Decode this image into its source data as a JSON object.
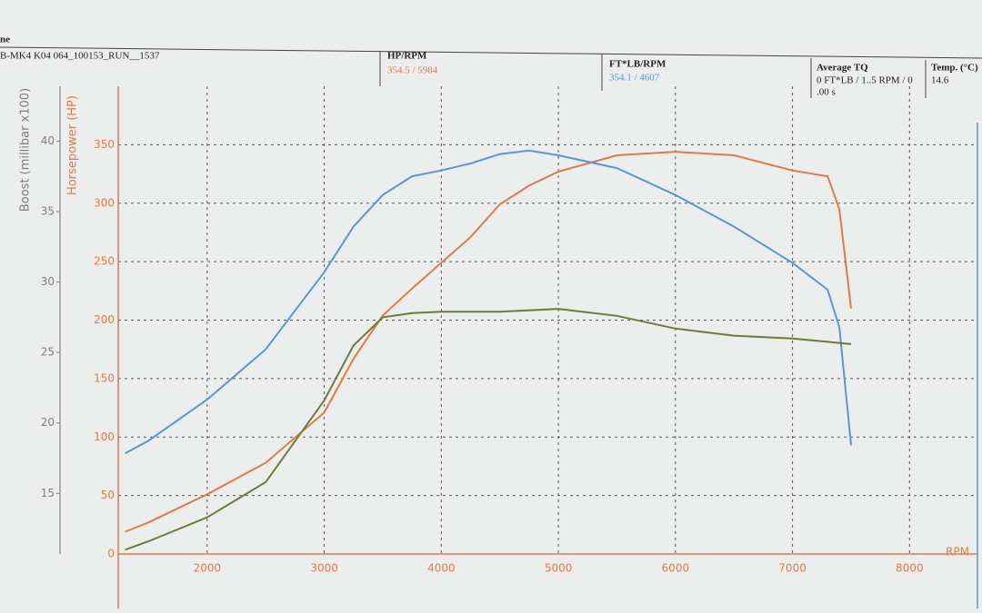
{
  "header": {
    "corner": "ne",
    "run": "B-MK4 K04 064_100153_RUN__1537",
    "hp_title": "HP/RPM",
    "hp_value": "354.5 / 5984",
    "tq_title": "FT*LB/RPM",
    "tq_value": "354.1 / 4607",
    "avg_title": "Average TQ",
    "avg_line1": "0 FT*LB / 1..5 RPM / 0",
    "avg_line2": ".00 s",
    "temp_title": "Temp. (°C)",
    "temp_value": "14.6"
  },
  "chart_data": {
    "type": "line",
    "x_label": "RPM",
    "y_label": "Horsepower (HP)",
    "y2_label": "Boost (millibar x100)",
    "xlim": [
      1240,
      8580
    ],
    "xticks": [
      2000,
      3000,
      4000,
      5000,
      6000,
      7000,
      8000
    ],
    "ylim": [
      0,
      400
    ],
    "yticks": [
      0,
      50,
      100,
      150,
      200,
      250,
      300,
      350
    ],
    "y2lim": [
      10.7,
      43.9
    ],
    "y2ticks": [
      15,
      20,
      25,
      30,
      35,
      40
    ],
    "grid": true,
    "series": [
      {
        "color": "#e07a4a",
        "x": [
          1300,
          1500,
          2000,
          2500,
          3000,
          3250,
          3500,
          3750,
          4000,
          4250,
          4500,
          4750,
          5000,
          5250,
          5500,
          6000,
          6500,
          7000,
          7300,
          7400,
          7500
        ],
        "values": [
          19,
          27,
          51,
          78,
          121,
          167,
          204,
          227,
          249,
          271,
          299,
          315,
          327,
          334,
          341,
          344,
          341,
          328,
          323,
          295,
          210
        ]
      },
      {
        "color": "#5b95d6",
        "x": [
          1300,
          1500,
          2000,
          2500,
          3000,
          3250,
          3500,
          3750,
          4000,
          4250,
          4500,
          4750,
          5000,
          5500,
          6000,
          6500,
          7000,
          7300,
          7400,
          7500
        ],
        "values": [
          86,
          97,
          132,
          175,
          241,
          280,
          307,
          323,
          328,
          334,
          342,
          345,
          341,
          330,
          307,
          280,
          249,
          226,
          194,
          93
        ]
      },
      {
        "color": "#6e7a3c",
        "axis": "y2",
        "x": [
          1300,
          1500,
          2000,
          2500,
          3000,
          3250,
          3500,
          3750,
          4000,
          4500,
          5000,
          5500,
          6000,
          6500,
          7000,
          7500
        ],
        "values": [
          11.0,
          11.6,
          13.3,
          15.8,
          21.6,
          25.5,
          27.5,
          27.8,
          27.9,
          27.9,
          28.1,
          27.6,
          26.7,
          26.2,
          26.0,
          25.6
        ]
      }
    ]
  }
}
